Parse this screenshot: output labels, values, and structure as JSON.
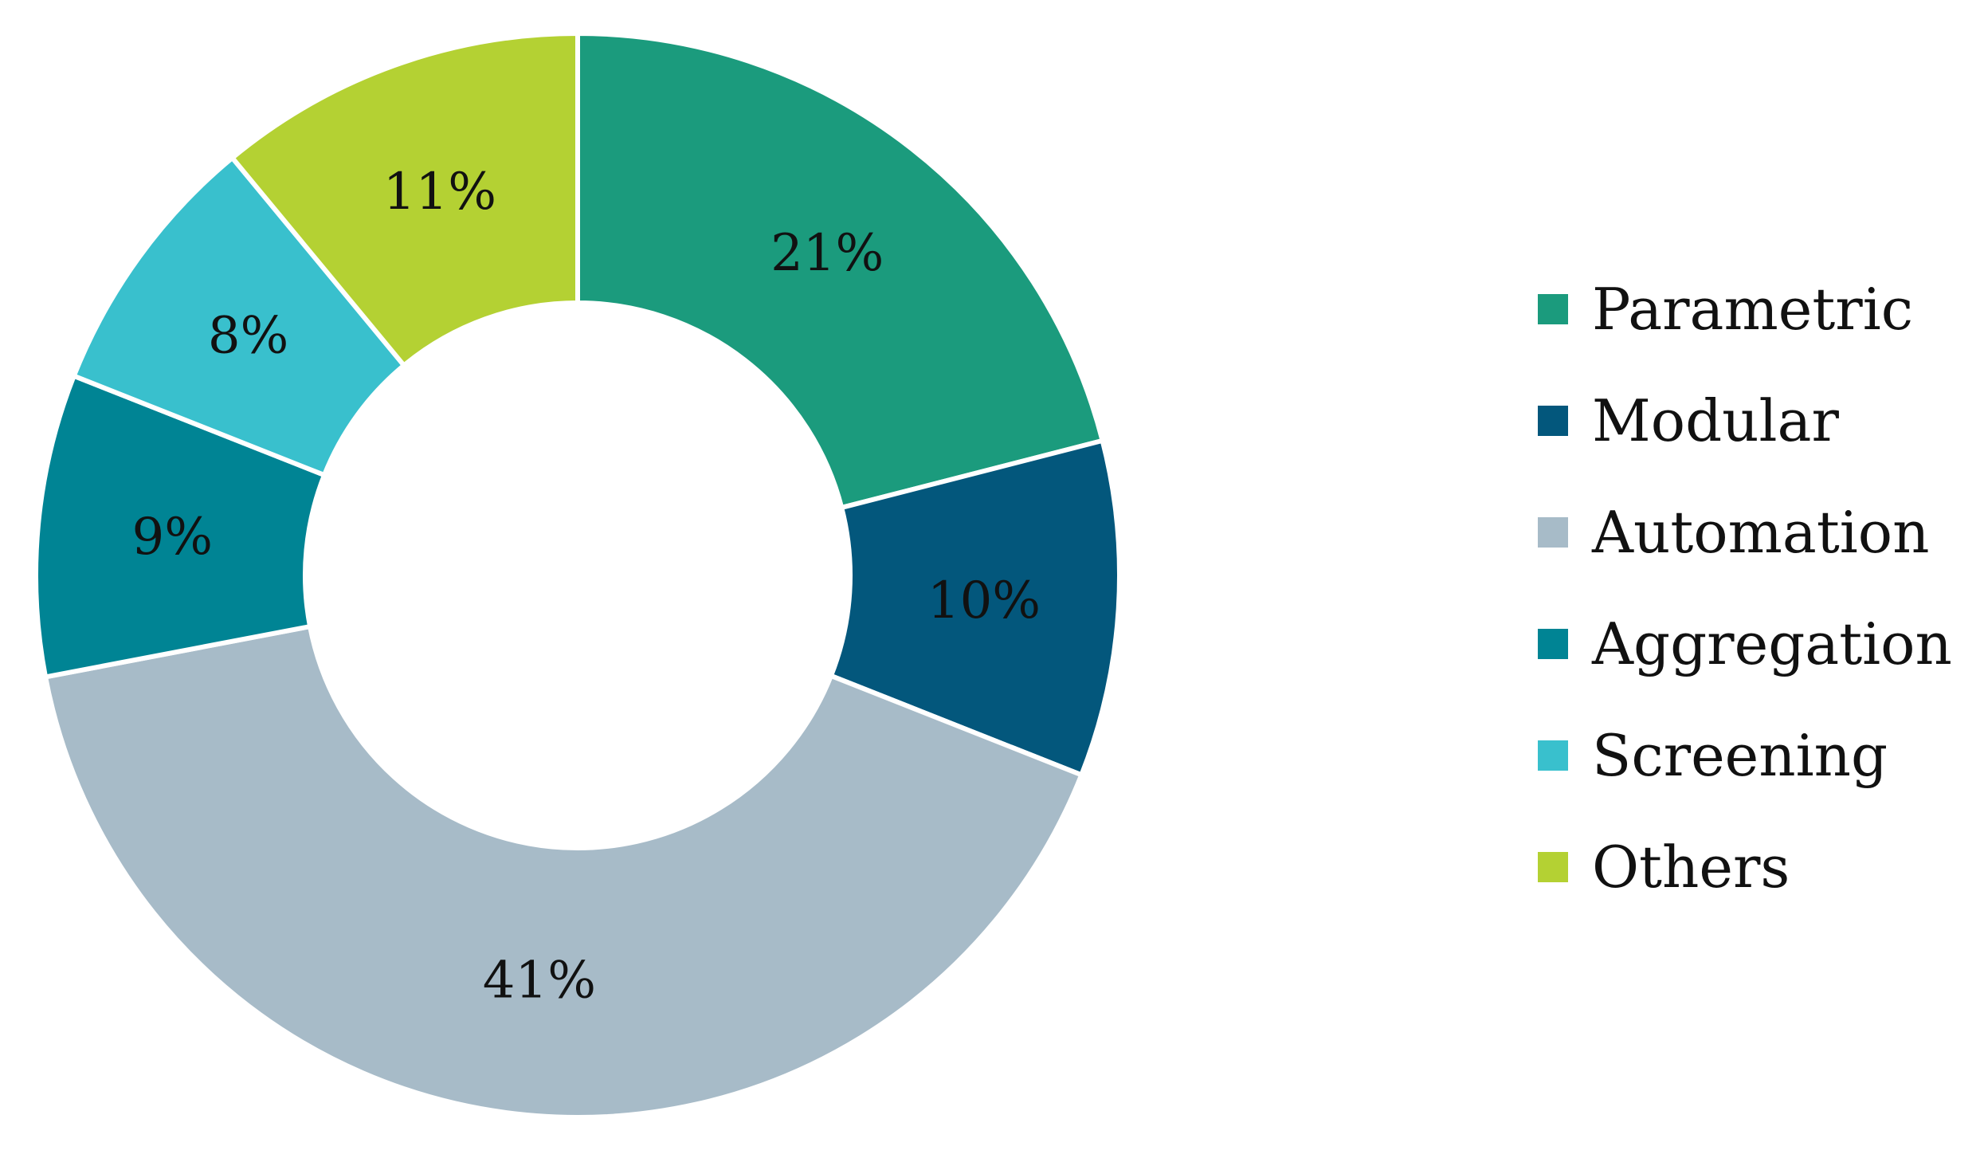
{
  "chart_data": {
    "type": "pie",
    "variant": "donut",
    "title": "",
    "start_angle_deg": 0,
    "direction": "clockwise",
    "legend": {
      "placement": "right"
    },
    "slices": [
      {
        "label": "Parametric",
        "value": 21,
        "display": "21%",
        "color": "#1b9b7d"
      },
      {
        "label": "Modular",
        "value": 10,
        "display": "10%",
        "color": "#03577c"
      },
      {
        "label": "Automation",
        "value": 41,
        "display": "41%",
        "color": "#a7bbc8"
      },
      {
        "label": "Aggregation",
        "value": 9,
        "display": "9%",
        "color": "#008494"
      },
      {
        "label": "Screening",
        "value": 8,
        "display": "8%",
        "color": "#39c0cd"
      },
      {
        "label": "Others",
        "value": 11,
        "display": "11%",
        "color": "#b4d133"
      }
    ]
  }
}
